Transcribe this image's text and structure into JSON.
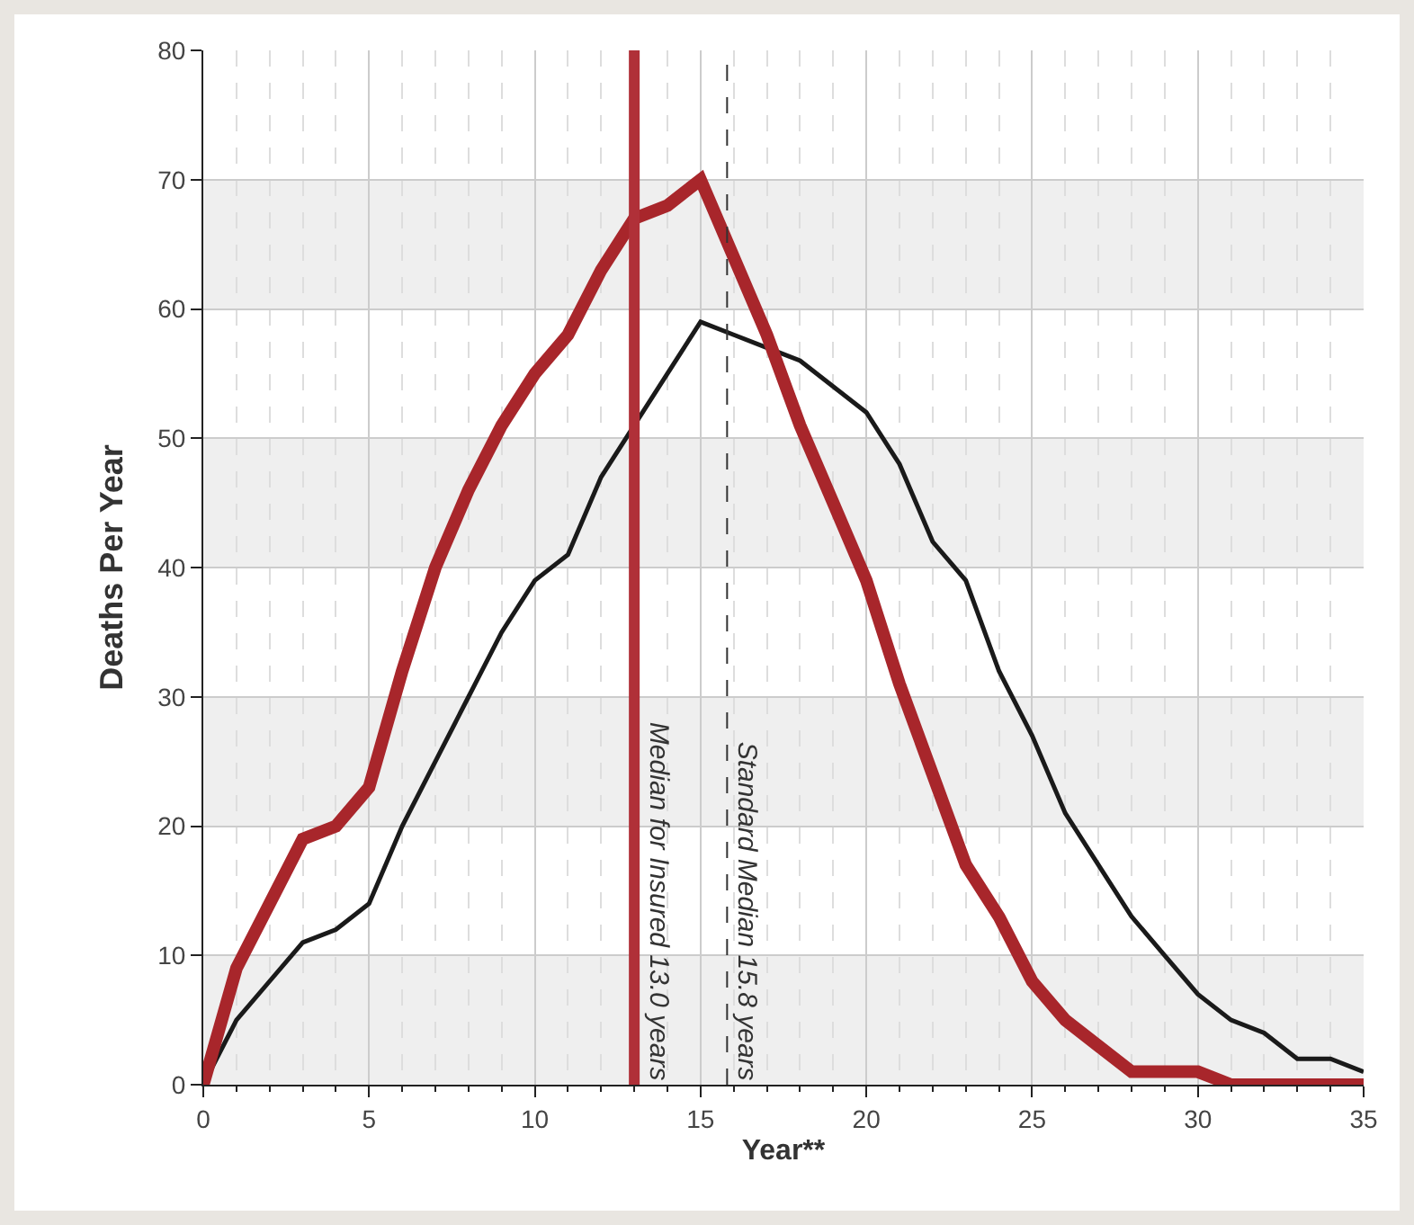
{
  "chart_data": {
    "type": "line",
    "xlabel": "Year**",
    "ylabel": "Deaths Per Year",
    "x": [
      0,
      1,
      2,
      3,
      4,
      5,
      6,
      7,
      8,
      9,
      10,
      11,
      12,
      13,
      14,
      15,
      16,
      17,
      18,
      19,
      20,
      21,
      22,
      23,
      24,
      25,
      26,
      27,
      28,
      29,
      30,
      31,
      32,
      33,
      34,
      35
    ],
    "series": [
      {
        "color": "#1a1a1a",
        "values": [
          0,
          5,
          8,
          11,
          12,
          14,
          20,
          25,
          30,
          35,
          39,
          41,
          47,
          51,
          55,
          59,
          58,
          57,
          56,
          54,
          52,
          48,
          42,
          39,
          32,
          27,
          21,
          17,
          13,
          10,
          7,
          5,
          4,
          2,
          2,
          1
        ]
      },
      {
        "color": "#a8262b",
        "values": [
          0,
          9,
          14,
          19,
          20,
          23,
          32,
          40,
          46,
          51,
          55,
          58,
          63,
          67,
          68,
          70,
          64,
          58,
          51,
          45,
          39,
          31,
          24,
          17,
          13,
          8,
          5,
          3,
          1,
          1,
          1,
          0,
          0,
          0,
          0,
          0
        ]
      }
    ],
    "xlim": [
      0,
      35
    ],
    "xticks": [
      0,
      5,
      10,
      15,
      20,
      25,
      30,
      35
    ],
    "ylim": [
      0,
      80
    ],
    "yticks": [
      0,
      10,
      20,
      30,
      40,
      50,
      60,
      70,
      80
    ],
    "grid": true,
    "marker": "none",
    "line_style": "solid",
    "ref_lines": [
      {
        "axis": "x",
        "value": 13,
        "label": "Median for Insured 13.0 years",
        "color": "#b03038",
        "line_style": "solid"
      },
      {
        "axis": "x",
        "value": 15.8,
        "label": "Standard Median 15.8 years",
        "color": "#333333",
        "line_style": "dashed"
      }
    ],
    "bands": [
      {
        "axis": "y",
        "from": 0,
        "to": 10,
        "color": "#efefef"
      },
      {
        "axis": "y",
        "from": 20,
        "to": 30,
        "color": "#efefef"
      },
      {
        "axis": "y",
        "from": 40,
        "to": 50,
        "color": "#efefef"
      },
      {
        "axis": "y",
        "from": 60,
        "to": 70,
        "color": "#efefef"
      }
    ]
  }
}
